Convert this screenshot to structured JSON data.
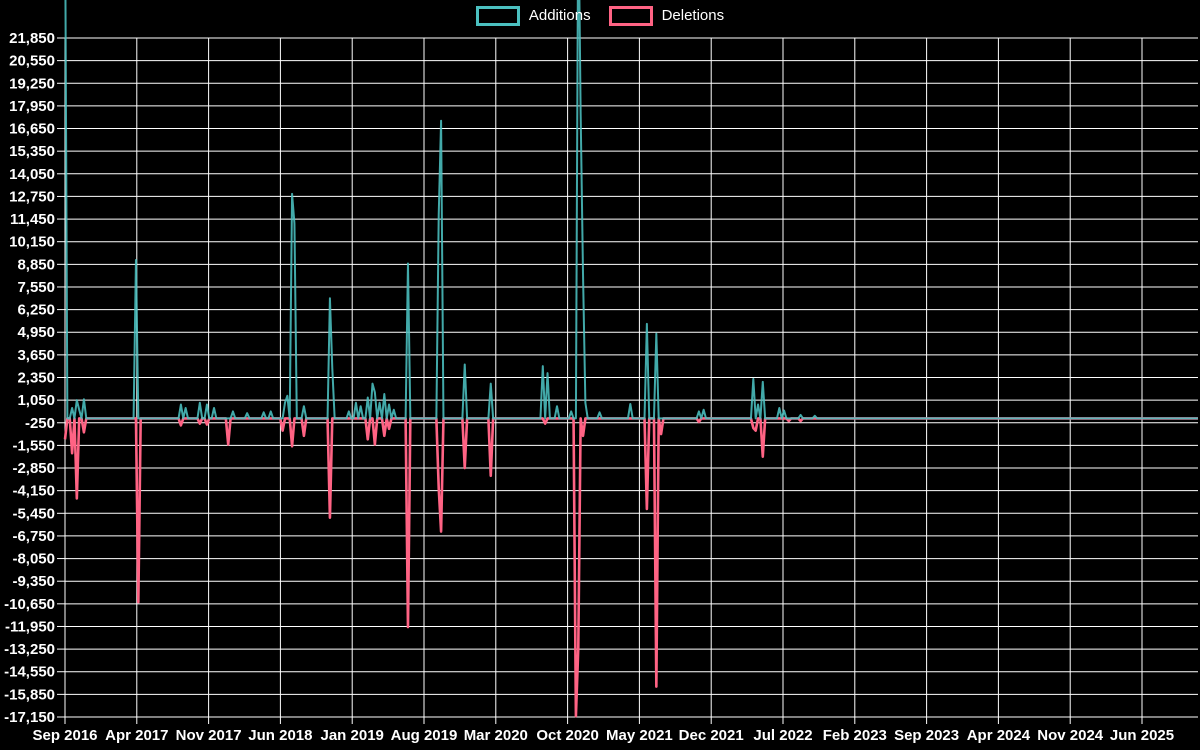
{
  "legend": {
    "items": [
      {
        "label": "Additions",
        "color": "#4BC0C0"
      },
      {
        "label": "Deletions",
        "color": "#FF6384"
      }
    ]
  },
  "chart_data": {
    "type": "line",
    "title": "",
    "xlabel": "",
    "ylabel": "",
    "background": "#000000",
    "grid": {
      "visible": true,
      "color": "#ffffff"
    },
    "legend_position": "top-center",
    "y_axis": {
      "max": 21850,
      "min": -17150,
      "tick_step": 1300,
      "tick_labels": [
        "21,850",
        "20,550",
        "19,250",
        "17,950",
        "16,650",
        "15,350",
        "14,050",
        "12,750",
        "11,450",
        "10,150",
        "8,850",
        "7,550",
        "6,250",
        "4,950",
        "3,650",
        "2,350",
        "1,050",
        "-250",
        "-1,550",
        "-2,850",
        "-4,150",
        "-5,450",
        "-6,750",
        "-8,050",
        "-9,350",
        "-10,650",
        "-11,950",
        "-13,250",
        "-14,550",
        "-15,850",
        "-17,150"
      ]
    },
    "x_axis": {
      "tick_labels": [
        "Sep 2016",
        "Apr 2017",
        "Nov 2017",
        "Jun 2018",
        "Jan 2019",
        "Aug 2019",
        "Mar 2020",
        "Oct 2020",
        "May 2021",
        "Dec 2021",
        "Jul 2022",
        "Feb 2023",
        "Sep 2023",
        "Apr 2024",
        "Nov 2024",
        "Jun 2025"
      ],
      "tick_interval": "7 months",
      "unit": "week"
    },
    "weeks": 480,
    "baseline_value": 0,
    "series": [
      {
        "name": "Additions",
        "color": "#4BC0C0",
        "note_clipped_peaks_weeks": [
          0,
          217
        ],
        "spikes": [
          [
            0,
            30000
          ],
          [
            3,
            600
          ],
          [
            5,
            1050
          ],
          [
            6,
            500
          ],
          [
            8,
            1100
          ],
          [
            30,
            9100
          ],
          [
            49,
            800
          ],
          [
            51,
            600
          ],
          [
            57,
            900
          ],
          [
            60,
            800
          ],
          [
            63,
            600
          ],
          [
            71,
            400
          ],
          [
            77,
            300
          ],
          [
            84,
            350
          ],
          [
            87,
            400
          ],
          [
            93,
            900
          ],
          [
            94,
            1300
          ],
          [
            96,
            12900
          ],
          [
            97,
            11200
          ],
          [
            101,
            700
          ],
          [
            112,
            6900
          ],
          [
            113,
            2900
          ],
          [
            120,
            400
          ],
          [
            123,
            900
          ],
          [
            125,
            700
          ],
          [
            128,
            1200
          ],
          [
            130,
            2000
          ],
          [
            131,
            1500
          ],
          [
            133,
            900
          ],
          [
            135,
            1400
          ],
          [
            137,
            800
          ],
          [
            139,
            500
          ],
          [
            145,
            8900
          ],
          [
            158,
            11700
          ],
          [
            159,
            17100
          ],
          [
            169,
            3100
          ],
          [
            180,
            2000
          ],
          [
            202,
            3000
          ],
          [
            204,
            2600
          ],
          [
            208,
            700
          ],
          [
            214,
            400
          ],
          [
            217,
            30000
          ],
          [
            218,
            17500
          ],
          [
            219,
            8300
          ],
          [
            220,
            900
          ],
          [
            226,
            350
          ],
          [
            239,
            830
          ],
          [
            246,
            5430
          ],
          [
            250,
            4870
          ],
          [
            268,
            400
          ],
          [
            270,
            500
          ],
          [
            291,
            2270
          ],
          [
            293,
            800
          ],
          [
            295,
            2100
          ],
          [
            302,
            600
          ],
          [
            304,
            450
          ],
          [
            311,
            200
          ],
          [
            317,
            150
          ]
        ]
      },
      {
        "name": "Deletions",
        "color": "#FF6384",
        "spikes": [
          [
            0,
            -1200
          ],
          [
            3,
            -2000
          ],
          [
            5,
            -4600
          ],
          [
            8,
            -800
          ],
          [
            31,
            -10550
          ],
          [
            49,
            -400
          ],
          [
            57,
            -300
          ],
          [
            60,
            -350
          ],
          [
            69,
            -1500
          ],
          [
            92,
            -700
          ],
          [
            96,
            -1600
          ],
          [
            101,
            -1000
          ],
          [
            112,
            -5700
          ],
          [
            128,
            -1200
          ],
          [
            131,
            -1500
          ],
          [
            135,
            -1000
          ],
          [
            137,
            -600
          ],
          [
            145,
            -11980
          ],
          [
            158,
            -4000
          ],
          [
            159,
            -6500
          ],
          [
            169,
            -2850
          ],
          [
            180,
            -3300
          ],
          [
            203,
            -300
          ],
          [
            216,
            -17100
          ],
          [
            217,
            -13200
          ],
          [
            219,
            -1000
          ],
          [
            246,
            -5200
          ],
          [
            250,
            -15400
          ],
          [
            252,
            -900
          ],
          [
            268,
            -200
          ],
          [
            291,
            -550
          ],
          [
            292,
            -700
          ],
          [
            295,
            -2200
          ],
          [
            306,
            -150
          ],
          [
            311,
            -150
          ]
        ]
      }
    ]
  }
}
